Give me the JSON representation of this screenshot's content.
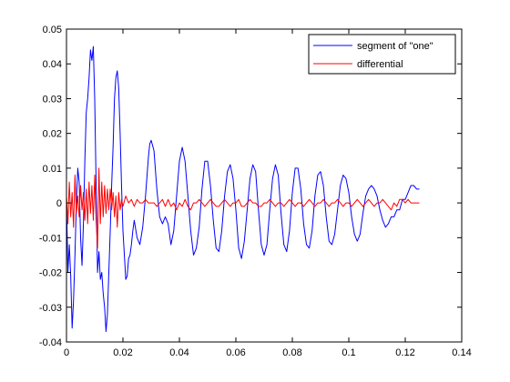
{
  "chart_data": {
    "type": "line",
    "title": "",
    "xlabel": "",
    "ylabel": "",
    "xlim": [
      0,
      0.14
    ],
    "ylim": [
      -0.04,
      0.05
    ],
    "x_ticks": [
      0,
      0.02,
      0.04,
      0.06,
      0.08,
      0.1,
      0.12,
      0.14
    ],
    "x_tick_labels": [
      "0",
      "0.02",
      "0.04",
      "0.06",
      "0.08",
      "0.1",
      "0.12",
      "0.14"
    ],
    "y_ticks": [
      -0.04,
      -0.03,
      -0.02,
      -0.01,
      0,
      0.01,
      0.02,
      0.03,
      0.04,
      0.05
    ],
    "y_tick_labels": [
      "-0.04",
      "-0.03",
      "-0.02",
      "-0.01",
      "0",
      "0.01",
      "0.02",
      "0.03",
      "0.04",
      "0.05"
    ],
    "grid": false,
    "legend_position": "top-right",
    "series": [
      {
        "name": "segment of \"one\"",
        "color": "#0000ff",
        "points": [
          [
            0.0,
            0.001
          ],
          [
            0.0005,
            -0.02
          ],
          [
            0.001,
            -0.012
          ],
          [
            0.0015,
            -0.021
          ],
          [
            0.002,
            -0.036
          ],
          [
            0.0025,
            -0.028
          ],
          [
            0.003,
            -0.015
          ],
          [
            0.0035,
            0.0
          ],
          [
            0.004,
            0.01
          ],
          [
            0.0045,
            0.006
          ],
          [
            0.005,
            -0.01
          ],
          [
            0.0055,
            -0.018
          ],
          [
            0.006,
            -0.006
          ],
          [
            0.0065,
            0.012
          ],
          [
            0.007,
            0.026
          ],
          [
            0.0075,
            0.03
          ],
          [
            0.008,
            0.036
          ],
          [
            0.0085,
            0.044
          ],
          [
            0.009,
            0.041
          ],
          [
            0.0095,
            0.045
          ],
          [
            0.01,
            0.03
          ],
          [
            0.0105,
            0.005
          ],
          [
            0.011,
            -0.02
          ],
          [
            0.0115,
            -0.014
          ],
          [
            0.012,
            -0.022
          ],
          [
            0.0125,
            -0.02
          ],
          [
            0.013,
            -0.026
          ],
          [
            0.0135,
            -0.03
          ],
          [
            0.014,
            -0.037
          ],
          [
            0.0145,
            -0.032
          ],
          [
            0.015,
            -0.02
          ],
          [
            0.0155,
            -0.008
          ],
          [
            0.016,
            0.005
          ],
          [
            0.0165,
            0.016
          ],
          [
            0.017,
            0.03
          ],
          [
            0.0175,
            0.036
          ],
          [
            0.018,
            0.038
          ],
          [
            0.0185,
            0.033
          ],
          [
            0.019,
            0.02
          ],
          [
            0.0195,
            0.005
          ],
          [
            0.02,
            -0.008
          ],
          [
            0.0205,
            -0.015
          ],
          [
            0.021,
            -0.022
          ],
          [
            0.0215,
            -0.021
          ],
          [
            0.022,
            -0.016
          ],
          [
            0.0225,
            -0.015
          ],
          [
            0.023,
            -0.012
          ],
          [
            0.0235,
            -0.008
          ],
          [
            0.024,
            -0.005
          ],
          [
            0.025,
            -0.01
          ],
          [
            0.026,
            -0.012
          ],
          [
            0.027,
            -0.007
          ],
          [
            0.028,
            0.002
          ],
          [
            0.029,
            0.013
          ],
          [
            0.0295,
            0.017
          ],
          [
            0.03,
            0.018
          ],
          [
            0.031,
            0.015
          ],
          [
            0.032,
            0.004
          ],
          [
            0.033,
            -0.004
          ],
          [
            0.034,
            -0.006
          ],
          [
            0.035,
            -0.004
          ],
          [
            0.036,
            -0.006
          ],
          [
            0.037,
            -0.012
          ],
          [
            0.038,
            -0.008
          ],
          [
            0.039,
            0.002
          ],
          [
            0.04,
            0.012
          ],
          [
            0.041,
            0.016
          ],
          [
            0.042,
            0.012
          ],
          [
            0.043,
            0.002
          ],
          [
            0.044,
            -0.008
          ],
          [
            0.045,
            -0.015
          ],
          [
            0.046,
            -0.013
          ],
          [
            0.047,
            -0.007
          ],
          [
            0.048,
            0.004
          ],
          [
            0.049,
            0.012
          ],
          [
            0.05,
            0.012
          ],
          [
            0.051,
            0.005
          ],
          [
            0.052,
            -0.005
          ],
          [
            0.053,
            -0.013
          ],
          [
            0.054,
            -0.014
          ],
          [
            0.055,
            -0.008
          ],
          [
            0.056,
            0.002
          ],
          [
            0.057,
            0.009
          ],
          [
            0.058,
            0.011
          ],
          [
            0.059,
            0.007
          ],
          [
            0.06,
            -0.002
          ],
          [
            0.061,
            -0.013
          ],
          [
            0.062,
            -0.016
          ],
          [
            0.063,
            -0.011
          ],
          [
            0.064,
            -0.002
          ],
          [
            0.065,
            0.007
          ],
          [
            0.066,
            0.011
          ],
          [
            0.067,
            0.009
          ],
          [
            0.068,
            -0.002
          ],
          [
            0.069,
            -0.012
          ],
          [
            0.07,
            -0.015
          ],
          [
            0.071,
            -0.012
          ],
          [
            0.072,
            -0.002
          ],
          [
            0.073,
            0.007
          ],
          [
            0.074,
            0.011
          ],
          [
            0.075,
            0.008
          ],
          [
            0.076,
            -0.003
          ],
          [
            0.077,
            -0.012
          ],
          [
            0.078,
            -0.014
          ],
          [
            0.079,
            -0.008
          ],
          [
            0.08,
            0.003
          ],
          [
            0.081,
            0.01
          ],
          [
            0.082,
            0.01
          ],
          [
            0.083,
            0.004
          ],
          [
            0.084,
            -0.006
          ],
          [
            0.085,
            -0.012
          ],
          [
            0.086,
            -0.013
          ],
          [
            0.087,
            -0.008
          ],
          [
            0.088,
            0.002
          ],
          [
            0.089,
            0.008
          ],
          [
            0.09,
            0.009
          ],
          [
            0.091,
            0.005
          ],
          [
            0.092,
            -0.004
          ],
          [
            0.093,
            -0.011
          ],
          [
            0.094,
            -0.012
          ],
          [
            0.095,
            -0.009
          ],
          [
            0.096,
            -0.002
          ],
          [
            0.097,
            0.005
          ],
          [
            0.098,
            0.008
          ],
          [
            0.099,
            0.007
          ],
          [
            0.1,
            0.003
          ],
          [
            0.101,
            -0.004
          ],
          [
            0.102,
            -0.009
          ],
          [
            0.103,
            -0.011
          ],
          [
            0.104,
            -0.009
          ],
          [
            0.105,
            -0.003
          ],
          [
            0.106,
            0.002
          ],
          [
            0.107,
            0.004
          ],
          [
            0.108,
            0.005
          ],
          [
            0.109,
            0.004
          ],
          [
            0.11,
            0.002
          ],
          [
            0.111,
            -0.002
          ],
          [
            0.112,
            -0.005
          ],
          [
            0.113,
            -0.007
          ],
          [
            0.114,
            -0.006
          ],
          [
            0.115,
            -0.004
          ],
          [
            0.116,
            -0.004
          ],
          [
            0.117,
            -0.002
          ],
          [
            0.118,
            -0.002
          ],
          [
            0.119,
            0.001
          ],
          [
            0.12,
            0.001
          ],
          [
            0.121,
            0.003
          ],
          [
            0.122,
            0.005
          ],
          [
            0.123,
            0.005
          ],
          [
            0.124,
            0.004
          ],
          [
            0.125,
            0.004
          ]
        ]
      },
      {
        "name": "differential",
        "color": "#ff0000",
        "points": [
          [
            0.0,
            0.002
          ],
          [
            0.0005,
            -0.006
          ],
          [
            0.001,
            0.006
          ],
          [
            0.0015,
            -0.004
          ],
          [
            0.002,
            0.003
          ],
          [
            0.0025,
            -0.007
          ],
          [
            0.003,
            0.008
          ],
          [
            0.0035,
            -0.003
          ],
          [
            0.004,
            0.002
          ],
          [
            0.0045,
            -0.004
          ],
          [
            0.005,
            0.005
          ],
          [
            0.0055,
            -0.002
          ],
          [
            0.006,
            0.003
          ],
          [
            0.0065,
            -0.005
          ],
          [
            0.007,
            0.004
          ],
          [
            0.0075,
            -0.006
          ],
          [
            0.008,
            0.006
          ],
          [
            0.0085,
            -0.003
          ],
          [
            0.009,
            0.005
          ],
          [
            0.0095,
            -0.005
          ],
          [
            0.01,
            0.008
          ],
          [
            0.0105,
            -0.005
          ],
          [
            0.011,
            -0.013
          ],
          [
            0.0115,
            0.01
          ],
          [
            0.012,
            -0.006
          ],
          [
            0.0125,
            0.006
          ],
          [
            0.013,
            -0.004
          ],
          [
            0.0135,
            0.005
          ],
          [
            0.014,
            -0.003
          ],
          [
            0.0145,
            0.004
          ],
          [
            0.015,
            -0.002
          ],
          [
            0.0155,
            0.004
          ],
          [
            0.016,
            -0.002
          ],
          [
            0.0165,
            0.003
          ],
          [
            0.017,
            -0.004
          ],
          [
            0.0175,
            0.002
          ],
          [
            0.018,
            -0.007
          ],
          [
            0.0185,
            0.003
          ],
          [
            0.019,
            -0.002
          ],
          [
            0.0195,
            0.001
          ],
          [
            0.02,
            -0.001
          ],
          [
            0.021,
            0.002
          ],
          [
            0.022,
            0.0
          ],
          [
            0.023,
            0.001
          ],
          [
            0.024,
            -0.001
          ],
          [
            0.025,
            0.001
          ],
          [
            0.026,
            0.0
          ],
          [
            0.027,
            0.0
          ],
          [
            0.028,
            0.001
          ],
          [
            0.029,
            0.0
          ],
          [
            0.03,
            0.0
          ],
          [
            0.031,
            0.0
          ],
          [
            0.032,
            -0.001
          ],
          [
            0.033,
            0.0
          ],
          [
            0.034,
            0.001
          ],
          [
            0.035,
            -0.001
          ],
          [
            0.036,
            0.001
          ],
          [
            0.037,
            -0.001
          ],
          [
            0.038,
            0.0
          ],
          [
            0.039,
            -0.002
          ],
          [
            0.04,
            0.0
          ],
          [
            0.041,
            -0.001
          ],
          [
            0.042,
            0.001
          ],
          [
            0.043,
            -0.001
          ],
          [
            0.044,
            -0.002
          ],
          [
            0.045,
            0.0
          ],
          [
            0.046,
            0.0
          ],
          [
            0.047,
            0.001
          ],
          [
            0.048,
            0.0
          ],
          [
            0.049,
            -0.001
          ],
          [
            0.05,
            0.0
          ],
          [
            0.051,
            0.001
          ],
          [
            0.052,
            0.0
          ],
          [
            0.053,
            -0.001
          ],
          [
            0.054,
            -0.001
          ],
          [
            0.055,
            0.0
          ],
          [
            0.056,
            0.001
          ],
          [
            0.057,
            0.0
          ],
          [
            0.058,
            -0.001
          ],
          [
            0.059,
            0.0
          ],
          [
            0.06,
            0.0
          ],
          [
            0.061,
            0.001
          ],
          [
            0.062,
            -0.001
          ],
          [
            0.063,
            -0.001
          ],
          [
            0.064,
            0.0
          ],
          [
            0.065,
            0.001
          ],
          [
            0.066,
            0.0
          ],
          [
            0.067,
            0.0
          ],
          [
            0.068,
            -0.001
          ],
          [
            0.069,
            -0.001
          ],
          [
            0.07,
            0.0
          ],
          [
            0.071,
            0.0
          ],
          [
            0.072,
            0.001
          ],
          [
            0.073,
            0.0
          ],
          [
            0.074,
            -0.001
          ],
          [
            0.075,
            0.0
          ],
          [
            0.076,
            0.0
          ],
          [
            0.077,
            -0.001
          ],
          [
            0.078,
            0.0
          ],
          [
            0.079,
            0.001
          ],
          [
            0.08,
            0.0
          ],
          [
            0.081,
            -0.001
          ],
          [
            0.082,
            0.0
          ],
          [
            0.083,
            0.0
          ],
          [
            0.084,
            -0.001
          ],
          [
            0.085,
            0.0
          ],
          [
            0.086,
            0.001
          ],
          [
            0.087,
            0.0
          ],
          [
            0.088,
            -0.001
          ],
          [
            0.089,
            0.0
          ],
          [
            0.09,
            0.0
          ],
          [
            0.091,
            0.001
          ],
          [
            0.092,
            0.0
          ],
          [
            0.093,
            -0.001
          ],
          [
            0.094,
            0.0
          ],
          [
            0.095,
            0.0
          ],
          [
            0.096,
            0.001
          ],
          [
            0.097,
            0.0
          ],
          [
            0.098,
            -0.001
          ],
          [
            0.099,
            0.0
          ],
          [
            0.1,
            0.0
          ],
          [
            0.101,
            -0.001
          ],
          [
            0.102,
            0.0
          ],
          [
            0.103,
            0.001
          ],
          [
            0.104,
            0.0
          ],
          [
            0.105,
            -0.001
          ],
          [
            0.106,
            0.0
          ],
          [
            0.107,
            0.001
          ],
          [
            0.108,
            0.0
          ],
          [
            0.109,
            -0.001
          ],
          [
            0.11,
            0.0
          ],
          [
            0.111,
            0.0
          ],
          [
            0.112,
            0.001
          ],
          [
            0.113,
            0.0
          ],
          [
            0.114,
            -0.001
          ],
          [
            0.115,
            -0.002
          ],
          [
            0.116,
            0.0
          ],
          [
            0.117,
            -0.001
          ],
          [
            0.118,
            0.001
          ],
          [
            0.119,
            0.001
          ],
          [
            0.12,
            0.0
          ],
          [
            0.121,
            0.001
          ],
          [
            0.122,
            0.0
          ],
          [
            0.123,
            0.0
          ],
          [
            0.124,
            0.0
          ],
          [
            0.125,
            0.0
          ]
        ]
      }
    ]
  }
}
